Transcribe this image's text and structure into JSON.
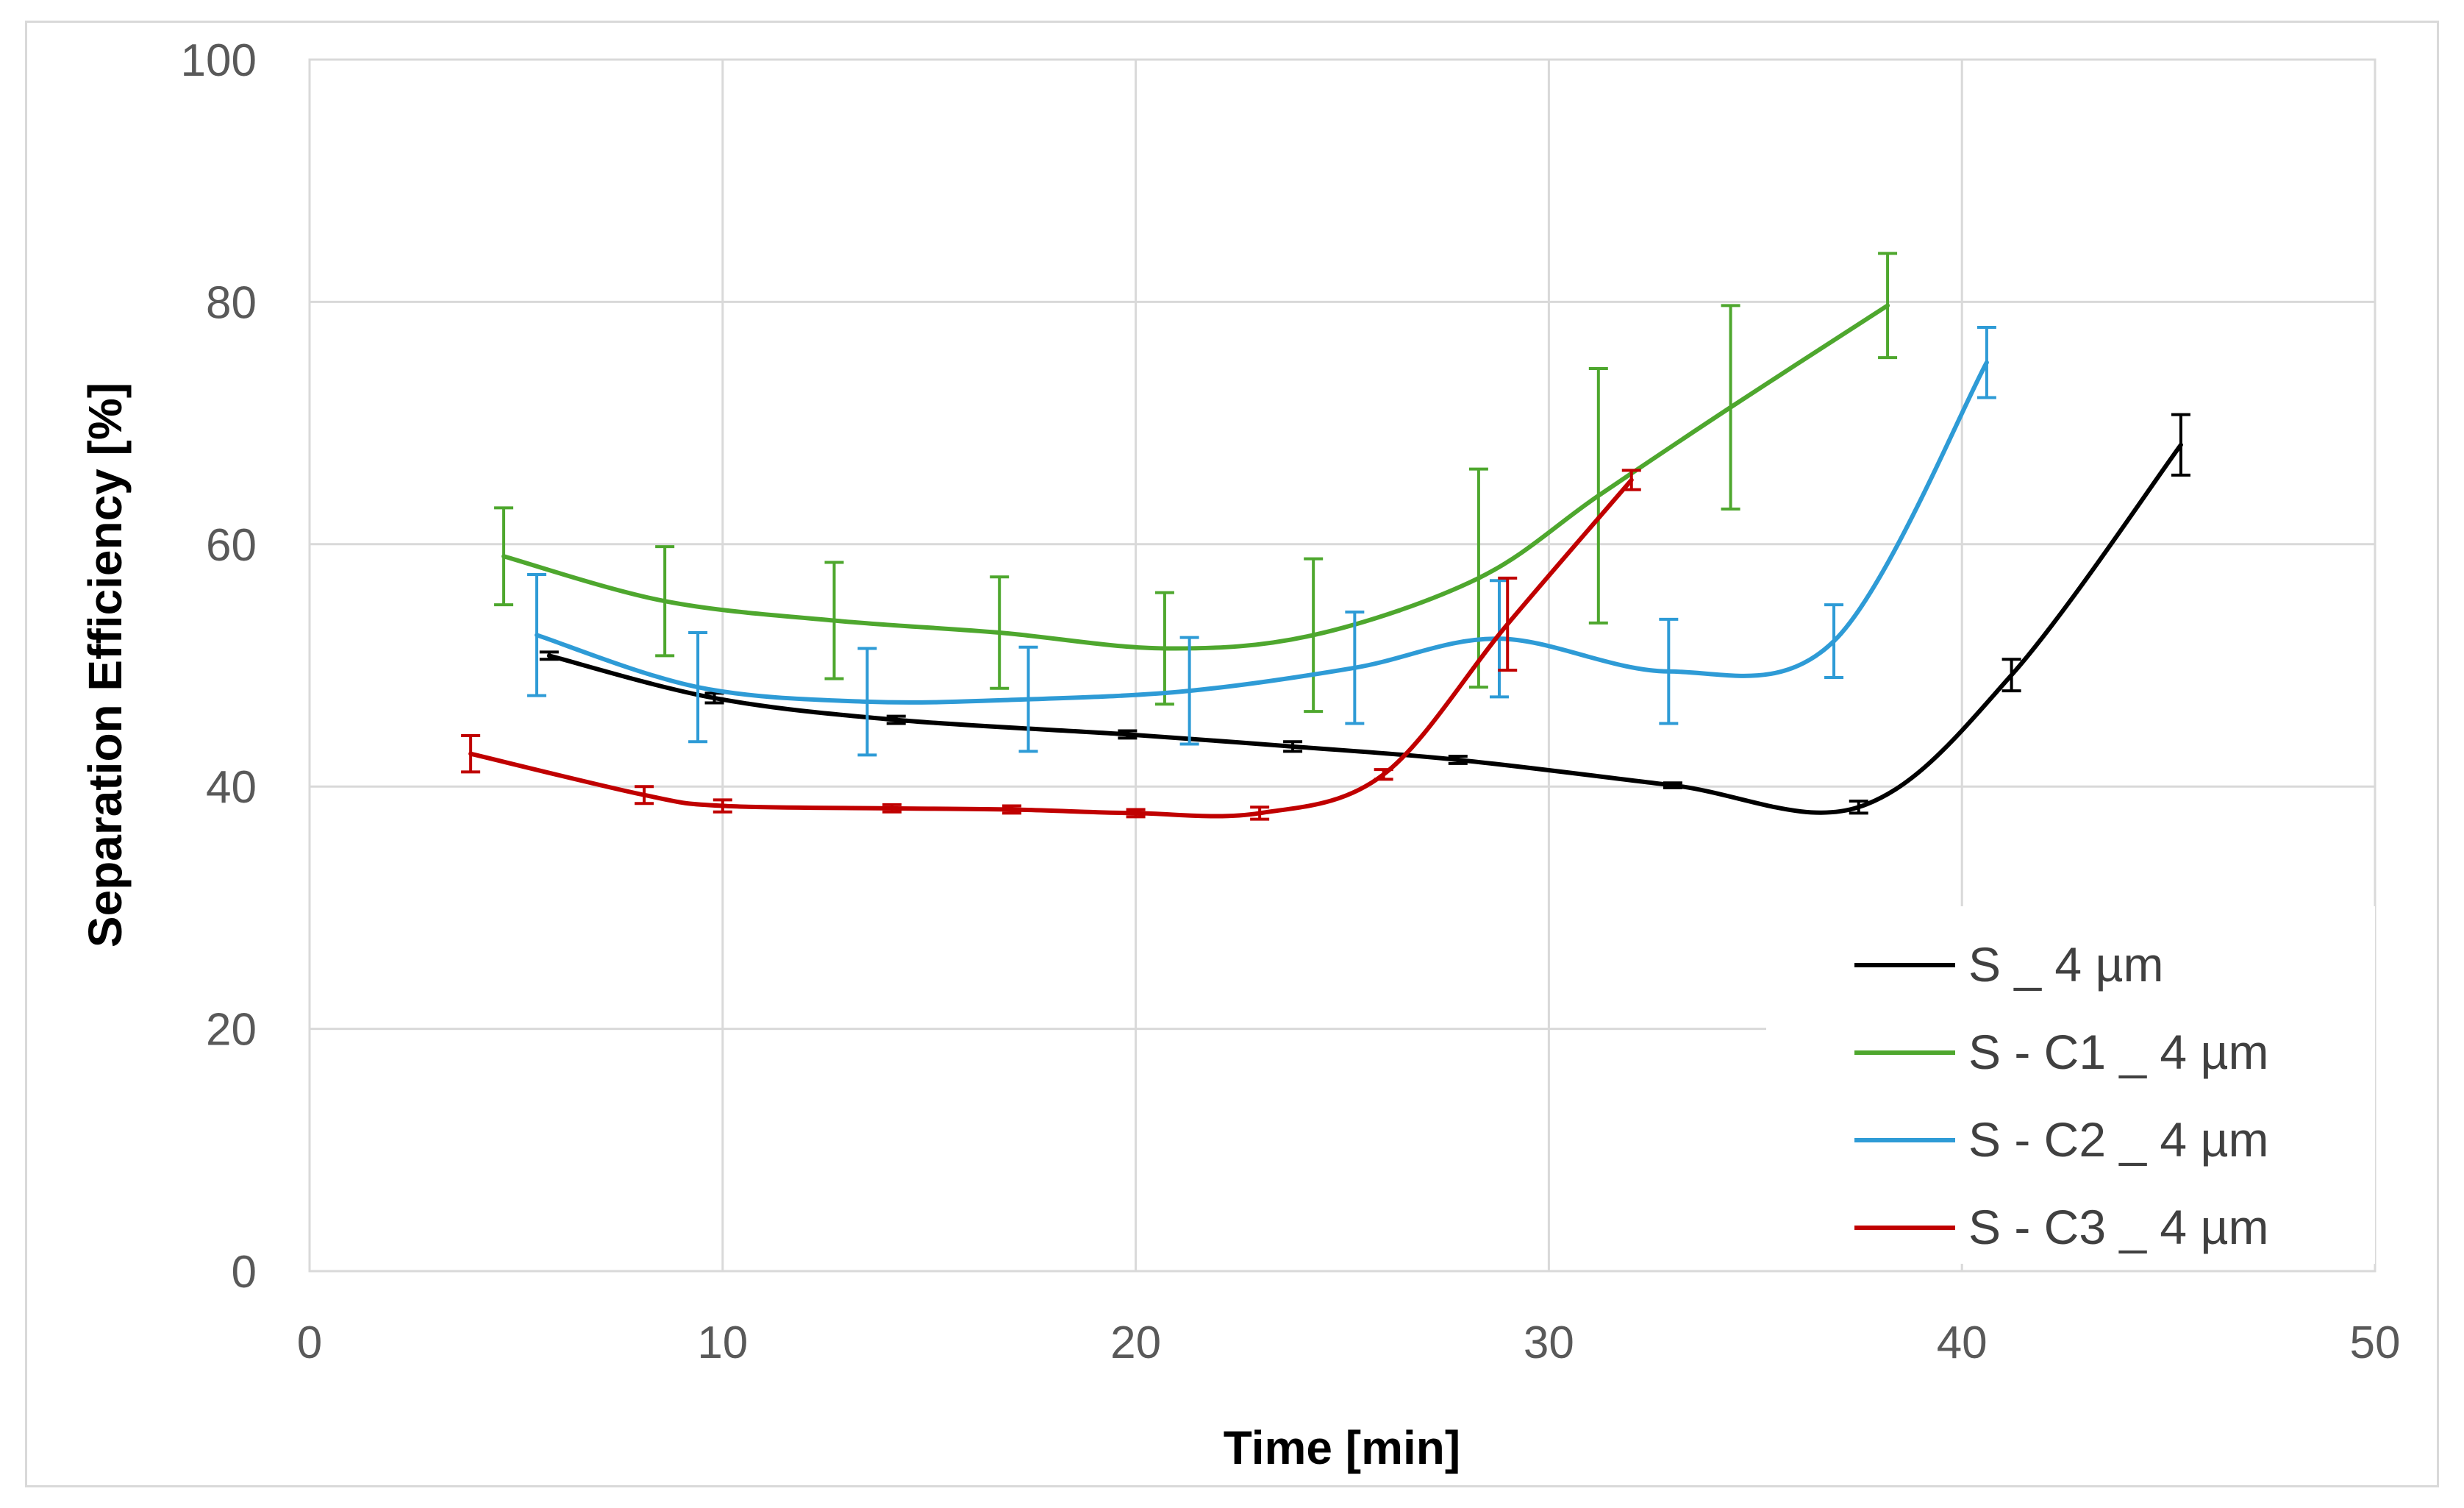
{
  "chart_data": {
    "type": "line",
    "title": "",
    "xlabel": "Time [min]",
    "ylabel": "Separation Efficiency [%]",
    "xlim": [
      0,
      50
    ],
    "ylim": [
      0,
      100
    ],
    "xticks": [
      0,
      10,
      20,
      30,
      40,
      50
    ],
    "yticks": [
      0,
      20,
      40,
      60,
      80,
      100
    ],
    "grid": true,
    "legend_position": "bottom-right",
    "series": [
      {
        "name": "S _ 4 µm",
        "color": "#000000",
        "x": [
          5.8,
          9.8,
          14.2,
          19.8,
          23.8,
          27.8,
          33.0,
          37.5,
          41.2,
          45.3
        ],
        "y": [
          50.8,
          47.3,
          45.5,
          44.3,
          43.3,
          42.2,
          40.1,
          38.3,
          49.2,
          68.2
        ],
        "err": [
          0.3,
          0.4,
          0.3,
          0.3,
          0.4,
          0.3,
          0.2,
          0.5,
          1.3,
          2.5
        ]
      },
      {
        "name": "S - C1 _ 4 µm",
        "color": "#4ea72e",
        "x": [
          4.7,
          8.6,
          12.7,
          16.7,
          20.7,
          24.3,
          28.3,
          31.2,
          34.4,
          38.2
        ],
        "y": [
          59.0,
          55.3,
          53.7,
          52.7,
          51.4,
          52.5,
          57.2,
          64.0,
          71.3,
          79.7
        ],
        "err": [
          4.0,
          4.5,
          4.8,
          4.6,
          4.6,
          6.3,
          9.0,
          10.5,
          8.4,
          4.3
        ]
      },
      {
        "name": "S - C2 _ 4 µm",
        "color": "#2e9bd6",
        "x": [
          5.5,
          9.4,
          13.5,
          17.4,
          21.3,
          25.3,
          28.8,
          32.9,
          36.9,
          40.6
        ],
        "y": [
          52.5,
          48.2,
          47.0,
          47.2,
          47.9,
          49.8,
          52.2,
          49.5,
          52.0,
          75.0
        ],
        "err": [
          5.0,
          4.5,
          4.4,
          4.3,
          4.4,
          4.6,
          4.8,
          4.3,
          3.0,
          2.9
        ]
      },
      {
        "name": "S - C3 _ 4 µm",
        "color": "#c00000",
        "x": [
          3.9,
          8.1,
          10.0,
          14.1,
          17.0,
          20.0,
          23.0,
          26.0,
          29.0,
          32.0
        ],
        "y": [
          42.7,
          39.3,
          38.4,
          38.2,
          38.1,
          37.8,
          37.8,
          41.0,
          53.4,
          65.3
        ],
        "err": [
          1.5,
          0.7,
          0.5,
          0.3,
          0.3,
          0.3,
          0.5,
          0.4,
          3.8,
          0.8
        ]
      }
    ]
  }
}
